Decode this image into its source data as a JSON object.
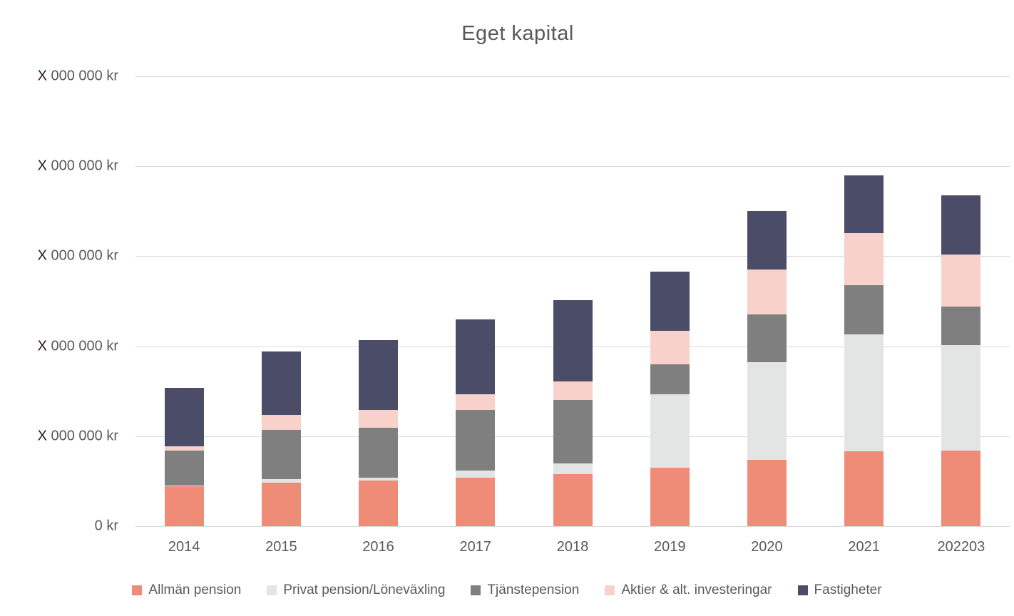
{
  "chart": {
    "title": "Eget kapital"
  },
  "chart_data": {
    "type": "stacked-bar",
    "title": "Eget kapital",
    "categories": [
      "2014",
      "2015",
      "2016",
      "2017",
      "2018",
      "2019",
      "2020",
      "2021",
      "202203"
    ],
    "series": [
      {
        "name": "Allmän pension",
        "color": "#ef8c78",
        "pattern": "solid",
        "values": [
          0.44,
          0.48,
          0.51,
          0.54,
          0.58,
          0.65,
          0.74,
          0.83,
          0.84
        ]
      },
      {
        "name": "Privat pension/Löneväxling",
        "color": "#e3e5e4",
        "pattern": "dots",
        "values": [
          0.01,
          0.04,
          0.03,
          0.08,
          0.12,
          0.82,
          1.08,
          1.3,
          1.17
        ]
      },
      {
        "name": "Tjänstepension",
        "color": "#7f7f7f",
        "pattern": "solid",
        "values": [
          0.39,
          0.55,
          0.55,
          0.67,
          0.7,
          0.33,
          0.53,
          0.55,
          0.43
        ]
      },
      {
        "name": "Aktier & alt. investeringar",
        "color": "#f8d2ca",
        "pattern": "solid",
        "values": [
          0.05,
          0.17,
          0.2,
          0.18,
          0.21,
          0.37,
          0.5,
          0.58,
          0.58
        ]
      },
      {
        "name": "Fastigheter",
        "color": "#4a4c68",
        "pattern": "solid",
        "values": [
          0.65,
          0.7,
          0.78,
          0.83,
          0.9,
          0.66,
          0.65,
          0.64,
          0.66
        ]
      }
    ],
    "totals_axis_units": [
      1.54,
      1.94,
      2.07,
      2.3,
      2.51,
      2.83,
      3.5,
      3.9,
      3.68
    ],
    "y_axis": {
      "unit": "kr",
      "range": [
        0,
        5
      ],
      "tick_step": 1,
      "gridlines": true,
      "gridline_color": "#d9d9d9",
      "note": "numeric digits redacted with X in source image",
      "labels_top_to_bottom": [
        {
          "redacted": "X",
          "text": " 000 000 kr"
        },
        {
          "redacted": "X",
          "text": " 000 000 kr"
        },
        {
          "redacted": "X",
          "text": " 000 000 kr"
        },
        {
          "redacted": "X",
          "text": " 000 000 kr"
        },
        {
          "redacted": "X",
          "text": " 000 000 kr"
        },
        {
          "redacted": "",
          "text": "0 kr"
        }
      ]
    },
    "legend_position": "bottom",
    "text_color": "#595959",
    "redaction_color": "#2a161b"
  }
}
